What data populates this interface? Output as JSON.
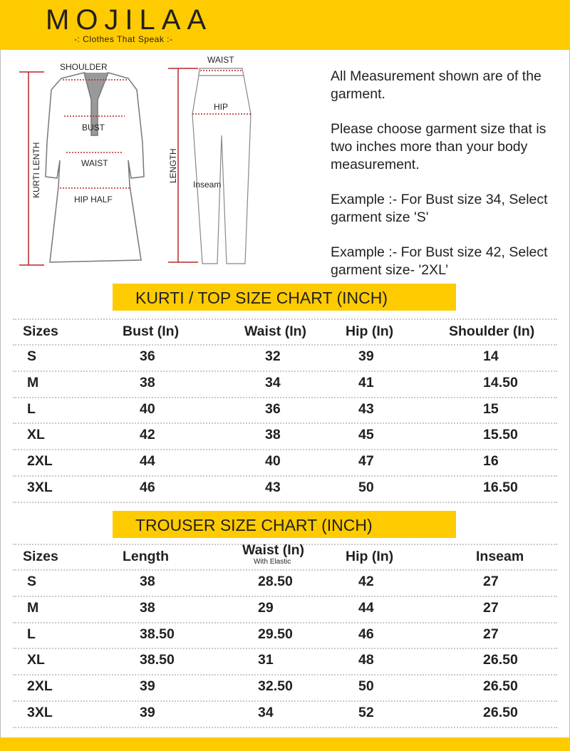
{
  "brand": {
    "name": "MOJILAA",
    "tagline": "-: Clothes That Speak :-"
  },
  "diagram": {
    "kurti_labels": {
      "shoulder": "SHOULDER",
      "bust": "BUST",
      "waist": "WAIST",
      "hip": "HIP HALF",
      "length": "KURTI LENTH"
    },
    "trouser_labels": {
      "waist": "WAIST",
      "hip": "HIP",
      "length": "LENGTH",
      "inseam": "Inseam"
    }
  },
  "notes": [
    "All Measurement shown are of the garment.",
    "Please choose garment size that is two inches more than your body measurement.",
    "Example :- For Bust size 34, Select garment size 'S'",
    "Example :- For Bust size 42, Select garment size- '2XL’"
  ],
  "kurti_chart": {
    "title": "KURTI / TOP SIZE CHART (INCH)",
    "headers": [
      "Sizes",
      "Bust (In)",
      "Waist (In)",
      "Hip (In)",
      "Shoulder (In)"
    ],
    "rows": [
      [
        "S",
        "36",
        "32",
        "39",
        "14"
      ],
      [
        "M",
        "38",
        "34",
        "41",
        "14.50"
      ],
      [
        "L",
        "40",
        "36",
        "43",
        "15"
      ],
      [
        "XL",
        "42",
        "38",
        "45",
        "15.50"
      ],
      [
        "2XL",
        "44",
        "40",
        "47",
        "16"
      ],
      [
        "3XL",
        "46",
        "43",
        "50",
        "16.50"
      ]
    ]
  },
  "trouser_chart": {
    "title": "TROUSER SIZE CHART (INCH)",
    "headers": [
      "Sizes",
      "Length",
      "Waist (In)",
      "Hip (In)",
      "Inseam"
    ],
    "waist_note": "With Elastic",
    "rows": [
      [
        "S",
        "38",
        "28.50",
        "42",
        "27"
      ],
      [
        "M",
        "38",
        "29",
        "44",
        "27"
      ],
      [
        "L",
        "38.50",
        "29.50",
        "46",
        "27"
      ],
      [
        "XL",
        "38.50",
        "31",
        "48",
        "26.50"
      ],
      [
        "2XL",
        "39",
        "32.50",
        "50",
        "26.50"
      ],
      [
        "3XL",
        "39",
        "34",
        "52",
        "26.50"
      ]
    ]
  },
  "colors": {
    "accent": "#fecb00",
    "measure_line": "#b5262b"
  }
}
